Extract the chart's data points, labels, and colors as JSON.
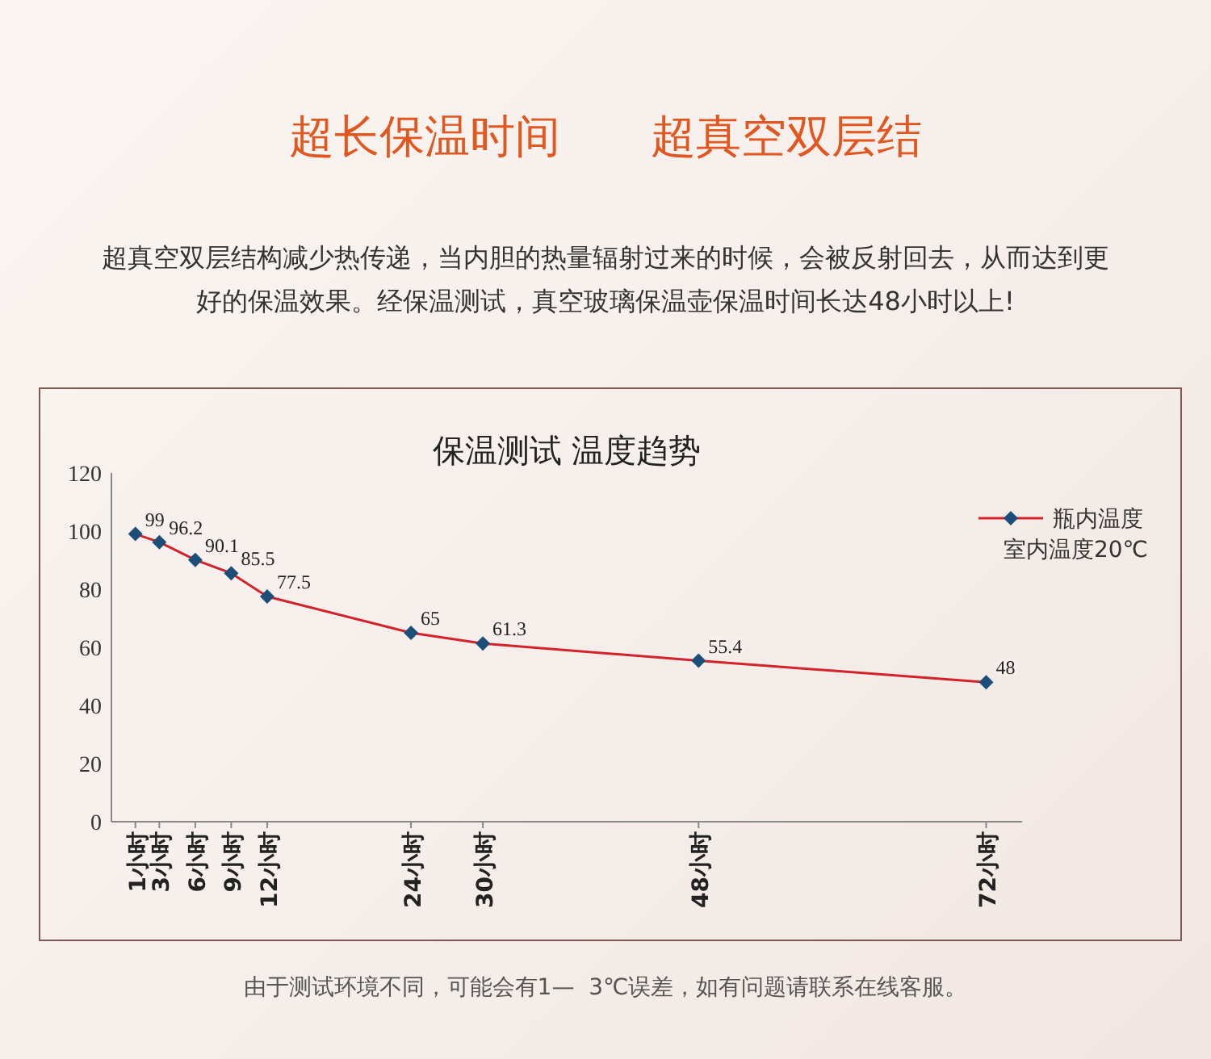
{
  "chart_data": {
    "type": "line",
    "title": "保温测试 温度趋势",
    "x": [
      1,
      3,
      6,
      9,
      12,
      24,
      30,
      48,
      72
    ],
    "series": [
      {
        "name": "瓶内温度",
        "color": "#d2232a",
        "values": [
          99,
          96.2,
          90.1,
          85.5,
          77.5,
          65,
          61.3,
          55.4,
          48
        ]
      }
    ],
    "xlim": [
      -1,
      75
    ],
    "xticks": [
      {
        "value": 1,
        "label": "1小时"
      },
      {
        "value": 3,
        "label": "3小时"
      },
      {
        "value": 6,
        "label": "6小时"
      },
      {
        "value": 9,
        "label": "9小时"
      },
      {
        "value": 12,
        "label": "12小时"
      },
      {
        "value": 24,
        "label": "24小时"
      },
      {
        "value": 30,
        "label": "30小时"
      },
      {
        "value": 48,
        "label": "48小时"
      },
      {
        "value": 72,
        "label": "72小时"
      }
    ],
    "ylim": [
      0,
      120
    ],
    "yticks": [
      0,
      20,
      40,
      60,
      80,
      100,
      120
    ],
    "marker": "diamond",
    "data_labels": true,
    "legend": "top right",
    "grid": false,
    "annotations": [
      "超长保温时间　　超真空双层结",
      "超真空双层结构减少热传递，当内胆的热量辐射过来的时候，会被反射回去，从而达到更好的保温效果。经保温测试，真空玻璃保温壶保温时间长达48小时以上!",
      "室内温度20℃",
      "由于测试环境不同，可能会有1—  3℃误差，如有问题请联系在线客服。"
    ]
  }
}
